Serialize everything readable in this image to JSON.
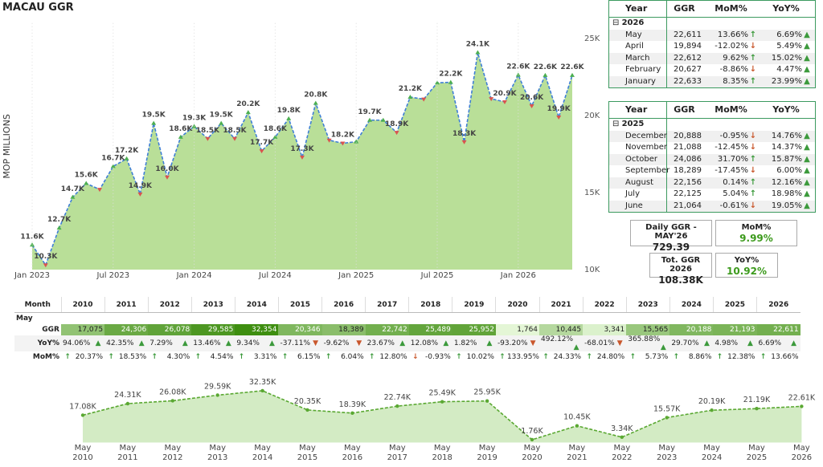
{
  "title": "MACAU GGR",
  "chart_data": [
    {
      "type": "area",
      "ylabel": "MOP MILLIONS",
      "categories": [
        "Jan 2023",
        null,
        null,
        null,
        null,
        null,
        "Jul 2023",
        null,
        null,
        null,
        null,
        null,
        "Jan 2024",
        null,
        null,
        null,
        null,
        null,
        "Jul 2024",
        null,
        null,
        null,
        null,
        null,
        "Jan 2025",
        null,
        null,
        null,
        null,
        null,
        "Jul 2025",
        null,
        null,
        null,
        null,
        null,
        "Jan 2026",
        null,
        null,
        null,
        null
      ],
      "values": [
        11600,
        10300,
        12700,
        14700,
        15600,
        15200,
        16700,
        17200,
        14900,
        19500,
        16000,
        18600,
        19300,
        18500,
        19500,
        18500,
        20200,
        17700,
        18600,
        19800,
        17300,
        20800,
        18400,
        18200,
        18300,
        19700,
        19700,
        18900,
        21200,
        21064,
        22125,
        22156,
        18289,
        24086,
        21088,
        20888,
        22633,
        20627,
        22612,
        19894,
        22611
      ],
      "value_labels": [
        "11.6K",
        "10.3K",
        "12.7K",
        "14.7K",
        "15.6K",
        null,
        "16.7K",
        "17.2K",
        "14.9K",
        "19.5K",
        "16.0K",
        "18.6K",
        "19.3K",
        "18.5K",
        "19.5K",
        "18.5K",
        "20.2K",
        "17.7K",
        "18.6K",
        "19.8K",
        "17.3K",
        "20.8K",
        null,
        "18.2K",
        null,
        "19.7K",
        null,
        "18.9K",
        "21.2K",
        null,
        null,
        "22.2K",
        "18.3K",
        "24.1K",
        null,
        "20.9K",
        "22.6K",
        "20.6K",
        "22.6K",
        "19.9K",
        "22.6K"
      ],
      "color": "#b9df98",
      "line_color": "#3f7fd6",
      "ylim": [
        10000,
        26000
      ],
      "yticks": [
        {
          "value": 10000,
          "label": "10K"
        },
        {
          "value": 15000,
          "label": "15K"
        },
        {
          "value": 20000,
          "label": "20K"
        },
        {
          "value": 25000,
          "label": "25K"
        }
      ]
    },
    {
      "type": "area",
      "categories": [
        "May 2010",
        "May 2011",
        "May 2012",
        "May 2013",
        "May 2014",
        "May 2015",
        "May 2016",
        "May 2017",
        "May 2018",
        "May 2019",
        "May 2020",
        "May 2021",
        "May 2022",
        "May 2023",
        "May 2024",
        "May 2025",
        "May 2026"
      ],
      "values": [
        17075,
        24306,
        26078,
        29585,
        32354,
        20346,
        18389,
        22742,
        25489,
        25952,
        1764,
        10445,
        3341,
        15565,
        20188,
        21193,
        22611
      ],
      "value_labels": [
        "17.08K",
        "24.31K",
        "26.08K",
        "29.59K",
        "32.35K",
        "20.35K",
        "18.39K",
        "22.74K",
        "25.49K",
        "25.95K",
        "1.76K",
        "10.45K",
        "3.34K",
        "15.57K",
        "20.19K",
        "21.19K",
        "22.61K"
      ],
      "color": "#d3ebc4",
      "line_color": "#5aa832",
      "ylim": [
        0,
        40000
      ]
    }
  ],
  "tables": [
    {
      "headers": [
        "Year",
        "GGR",
        "MoM%",
        "YoY%"
      ],
      "group": "2026",
      "rows": [
        [
          "May",
          "22,611",
          "13.66%",
          "6.69%"
        ],
        [
          "April",
          "19,894",
          "-12.02%",
          "5.49%"
        ],
        [
          "March",
          "22,612",
          "9.62%",
          "15.02%"
        ],
        [
          "February",
          "20,627",
          "-8.86%",
          "4.47%"
        ],
        [
          "January",
          "22,633",
          "8.35%",
          "23.99%"
        ]
      ]
    },
    {
      "headers": [
        "Year",
        "GGR",
        "MoM%",
        "YoY%"
      ],
      "group": "2025",
      "rows": [
        [
          "December",
          "20,888",
          "-0.95%",
          "14.76%"
        ],
        [
          "November",
          "21,088",
          "-12.45%",
          "14.37%"
        ],
        [
          "October",
          "24,086",
          "31.70%",
          "15.87%"
        ],
        [
          "September",
          "18,289",
          "-17.45%",
          "6.00%"
        ],
        [
          "August",
          "22,156",
          "0.14%",
          "12.16%"
        ],
        [
          "July",
          "22,125",
          "5.04%",
          "18.98%"
        ],
        [
          "June",
          "21,064",
          "-0.61%",
          "19.05%"
        ]
      ]
    }
  ],
  "kpis": [
    {
      "label": "Daily GGR - MAY'26",
      "value": "729.39"
    },
    {
      "label": "MoM%",
      "value": "9.99%"
    },
    {
      "label": "Tot. GGR 2026",
      "value": "108.38K"
    },
    {
      "label": "YoY%",
      "value": "10.92%"
    }
  ],
  "matrix": {
    "header": "Month",
    "years": [
      "2010",
      "2011",
      "2012",
      "2013",
      "2014",
      "2015",
      "2016",
      "2017",
      "2018",
      "2019",
      "2020",
      "2021",
      "2022",
      "2023",
      "2024",
      "2025",
      "2026"
    ],
    "group": "May",
    "row_labels": [
      "GGR",
      "YoY%",
      "MoM%"
    ],
    "rows": [
      [
        "17,075",
        "24,306",
        "26,078",
        "29,585",
        "32,354",
        "20,346",
        "18,389",
        "22,742",
        "25,489",
        "25,952",
        "1,764",
        "10,445",
        "3,341",
        "15,565",
        "20,188",
        "21,193",
        "22,611"
      ],
      [
        "94.06%",
        "42.35%",
        "7.29%",
        "13.46%",
        "9.34%",
        "-37.11%",
        "-9.62%",
        "23.67%",
        "12.08%",
        "1.82%",
        "-93.20%",
        "492.12%",
        "-68.01%",
        "365.88%",
        "29.70%",
        "4.98%",
        "6.69%"
      ],
      [
        "20.37%",
        "18.53%",
        "4.30%",
        "4.54%",
        "3.31%",
        "6.15%",
        "6.04%",
        "12.80%",
        "-0.93%",
        "10.02%",
        "133.95%",
        "24.33%",
        "24.80%",
        "5.73%",
        "8.86%",
        "12.38%",
        "13.66%"
      ]
    ]
  }
}
